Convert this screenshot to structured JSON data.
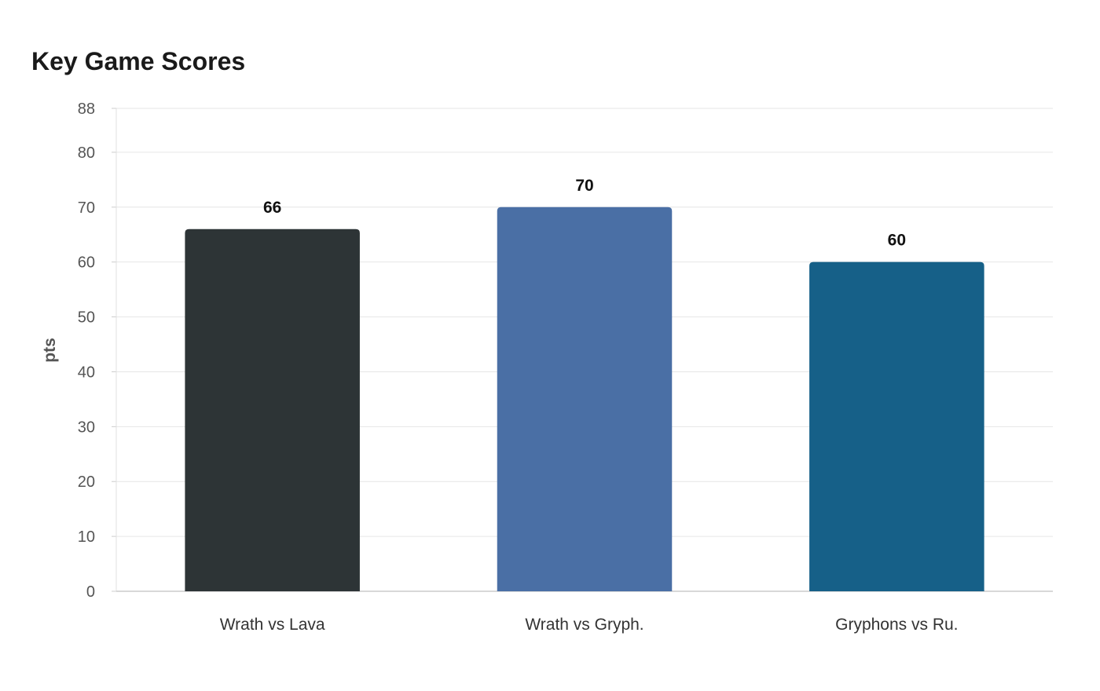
{
  "chart_data": {
    "type": "bar",
    "title": "Key Game Scores",
    "ylabel": "pts",
    "xlabel": "",
    "categories": [
      "Wrath vs Lava",
      "Wrath vs Gryph.",
      "Gryphons vs Ru."
    ],
    "values": [
      66,
      70,
      60
    ],
    "colors": [
      "#2d3436",
      "#4a6fa5",
      "#166088"
    ],
    "ylim": [
      0,
      88
    ],
    "yticks": [
      0,
      10,
      20,
      30,
      40,
      50,
      60,
      70,
      80,
      88
    ],
    "grid": true,
    "legend": "none"
  }
}
